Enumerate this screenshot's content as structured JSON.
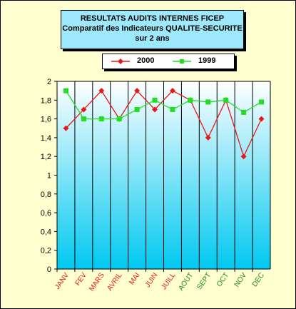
{
  "title": {
    "line1": "RESULTATS AUDITS INTERNES FICEP",
    "line2": "Comparatif des Indicateurs QUALITE-SECURITE",
    "line3": "sur 2 ans"
  },
  "colors": {
    "frame_bg": "#ffffd0",
    "title_bg": "#9ee8fb",
    "plot_top": "#ffffff",
    "plot_bottom": "#00c8f0",
    "series_2000": "#e81818",
    "series_1999": "#22dd22",
    "xtick_jan_jul": "#e81818",
    "xtick_aug_dec": "#1a8a1a"
  },
  "chart_data": {
    "type": "line",
    "categories": [
      "JANV",
      "FEV",
      "MARS",
      "AVRIL",
      "MAI",
      "JUIN",
      "JUILL",
      "AOUT",
      "SEPT",
      "OCT",
      "NOV",
      "DEC"
    ],
    "series": [
      {
        "name": "2000",
        "marker": "diamond",
        "values": [
          1.5,
          1.7,
          1.9,
          1.6,
          1.9,
          1.7,
          1.9,
          1.8,
          1.4,
          1.8,
          1.2,
          1.6
        ]
      },
      {
        "name": "1999",
        "marker": "square",
        "values": [
          1.9,
          1.6,
          1.6,
          1.6,
          1.7,
          1.8,
          1.7,
          1.8,
          1.78,
          1.8,
          1.67,
          1.78
        ]
      }
    ],
    "ylim": [
      0,
      2
    ],
    "yticks": [
      "0",
      "0,2",
      "0,4",
      "0,6",
      "0,8",
      "1",
      "1,2",
      "1,4",
      "1,6",
      "1,8",
      "2"
    ],
    "grid": "vertical",
    "legend_position": "top"
  }
}
